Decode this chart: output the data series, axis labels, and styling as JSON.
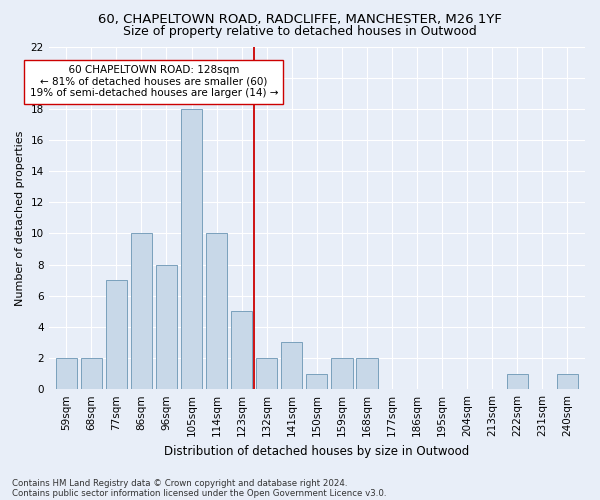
{
  "title1": "60, CHAPELTOWN ROAD, RADCLIFFE, MANCHESTER, M26 1YF",
  "title2": "Size of property relative to detached houses in Outwood",
  "xlabel": "Distribution of detached houses by size in Outwood",
  "ylabel": "Number of detached properties",
  "categories": [
    "59sqm",
    "68sqm",
    "77sqm",
    "86sqm",
    "96sqm",
    "105sqm",
    "114sqm",
    "123sqm",
    "132sqm",
    "141sqm",
    "150sqm",
    "159sqm",
    "168sqm",
    "177sqm",
    "186sqm",
    "195sqm",
    "204sqm",
    "213sqm",
    "222sqm",
    "231sqm",
    "240sqm"
  ],
  "values": [
    2,
    2,
    7,
    10,
    8,
    18,
    10,
    5,
    2,
    3,
    1,
    2,
    2,
    0,
    0,
    0,
    0,
    0,
    1,
    0,
    1
  ],
  "bar_color": "#c8d8e8",
  "bar_edge_color": "#7aa0bc",
  "vline_x": 7.5,
  "vline_color": "#cc0000",
  "annotation_text": "  60 CHAPELTOWN ROAD: 128sqm  \n← 81% of detached houses are smaller (60)\n19% of semi-detached houses are larger (14) →",
  "annotation_box_color": "#ffffff",
  "annotation_box_edge_color": "#cc0000",
  "ylim": [
    0,
    22
  ],
  "yticks": [
    0,
    2,
    4,
    6,
    8,
    10,
    12,
    14,
    16,
    18,
    20,
    22
  ],
  "footer1": "Contains HM Land Registry data © Crown copyright and database right 2024.",
  "footer2": "Contains public sector information licensed under the Open Government Licence v3.0.",
  "bg_color": "#e8eef8",
  "grid_color": "#ffffff",
  "title1_fontsize": 9.5,
  "title2_fontsize": 9,
  "xlabel_fontsize": 8.5,
  "ylabel_fontsize": 8,
  "tick_fontsize": 7.5,
  "bar_width": 0.85,
  "annotation_fontsize": 7.5,
  "footer_fontsize": 6.2
}
